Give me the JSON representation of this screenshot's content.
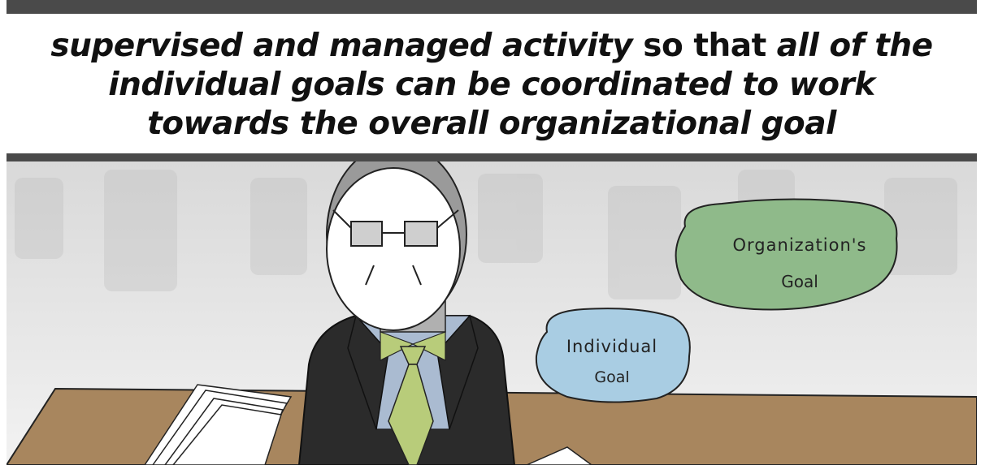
{
  "caption": {
    "line1_italic_a": "supervised and managed activity",
    "line1_plain": " so that ",
    "line1_italic_b": "all of the",
    "line2": "individual goals can be coordinated to work",
    "line3": "towards the overall organizational goal"
  },
  "bubbles": {
    "organization": {
      "line1": "Organization's",
      "line2": "Goal",
      "color": "#8fba8a"
    },
    "individual": {
      "line1": "Individual",
      "line2": "Goal",
      "color": "#a9cde3"
    }
  },
  "colors": {
    "bar": "#4a4a4a",
    "tie": "#b8cc7a",
    "suit": "#2b2b2b",
    "shirt": "#aabbd1",
    "hair": "#9a9a9a",
    "desk": "#a8865e"
  }
}
